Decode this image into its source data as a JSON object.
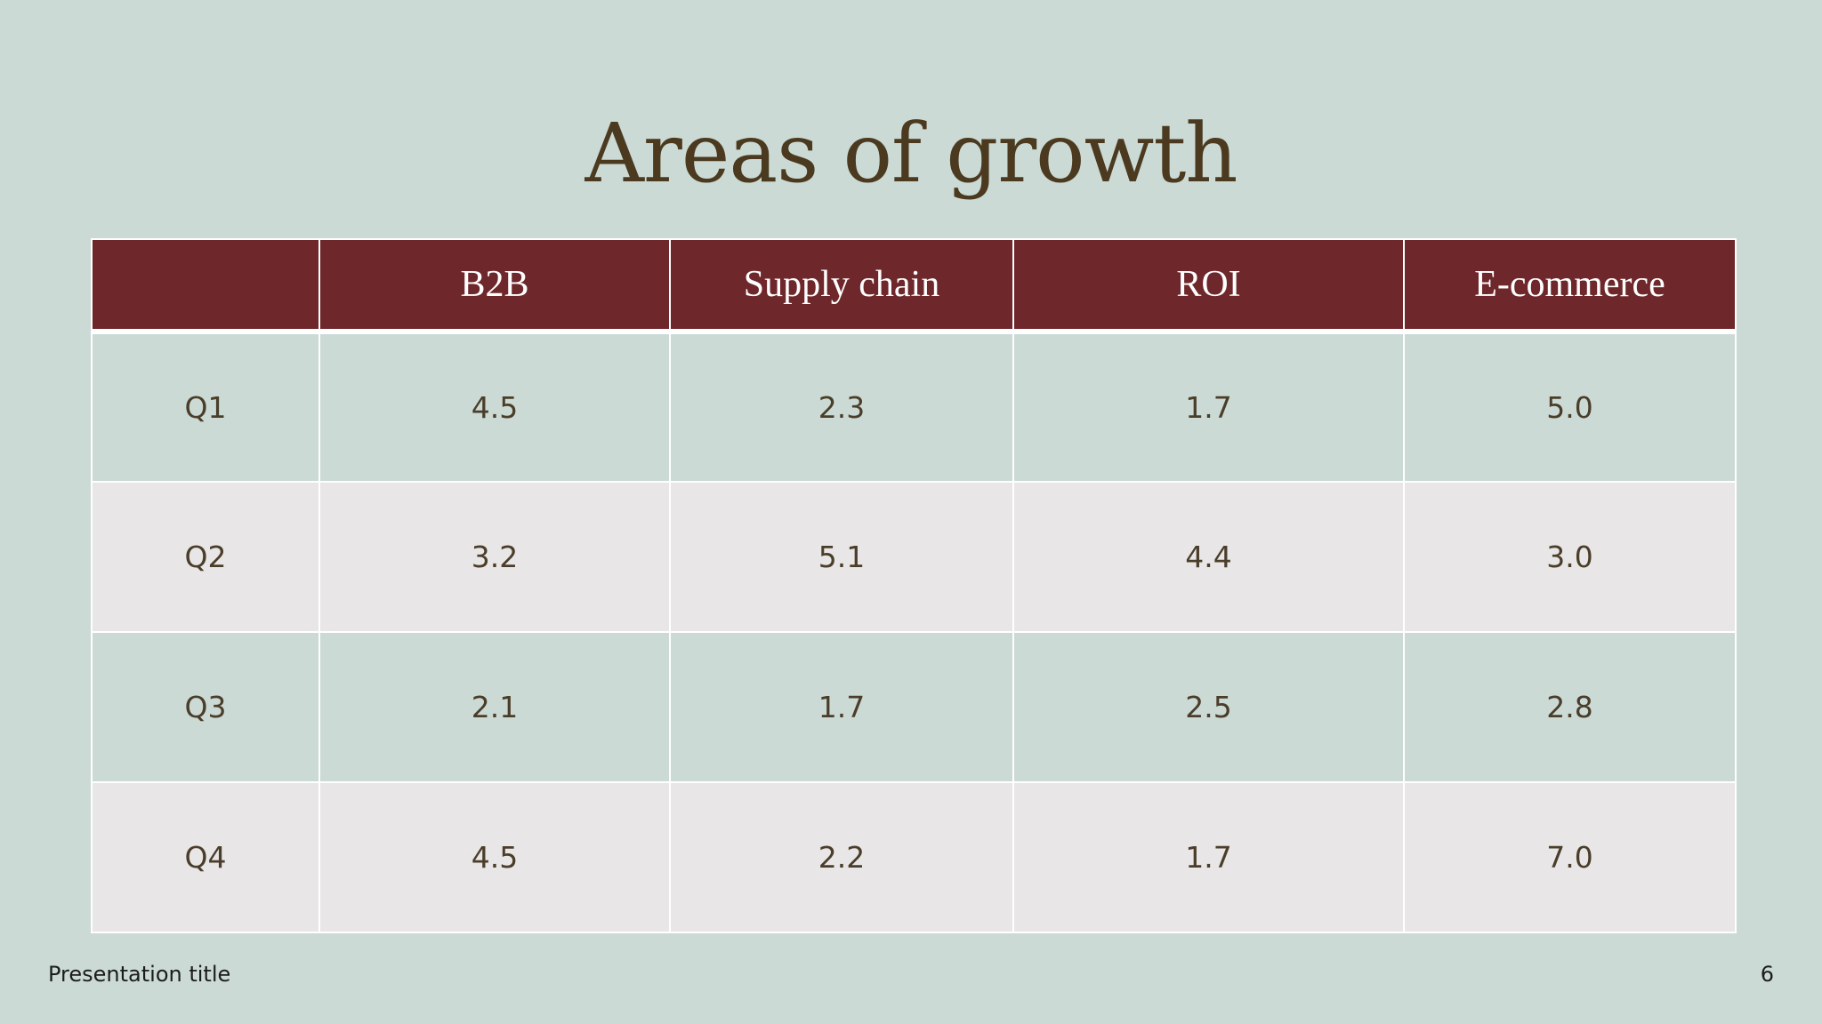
{
  "slide": {
    "title": "Areas of growth",
    "footer_title": "Presentation title",
    "page_number": "6"
  },
  "table": {
    "headers": [
      "",
      "B2B",
      "Supply chain",
      "ROI",
      "E-commerce"
    ],
    "rows": [
      [
        "Q1",
        "4.5",
        "2.3",
        "1.7",
        "5.0"
      ],
      [
        "Q2",
        "3.2",
        "5.1",
        "4.4",
        "3.0"
      ],
      [
        "Q3",
        "2.1",
        "1.7",
        "2.5",
        "2.8"
      ],
      [
        "Q4",
        "4.5",
        "2.2",
        "1.7",
        "7.0"
      ]
    ]
  },
  "colors": {
    "background": "#cbdad5",
    "header_fill": "#6e272a",
    "alt_row_fill": "#e8e6e6",
    "title_text": "#4b3a1f"
  }
}
